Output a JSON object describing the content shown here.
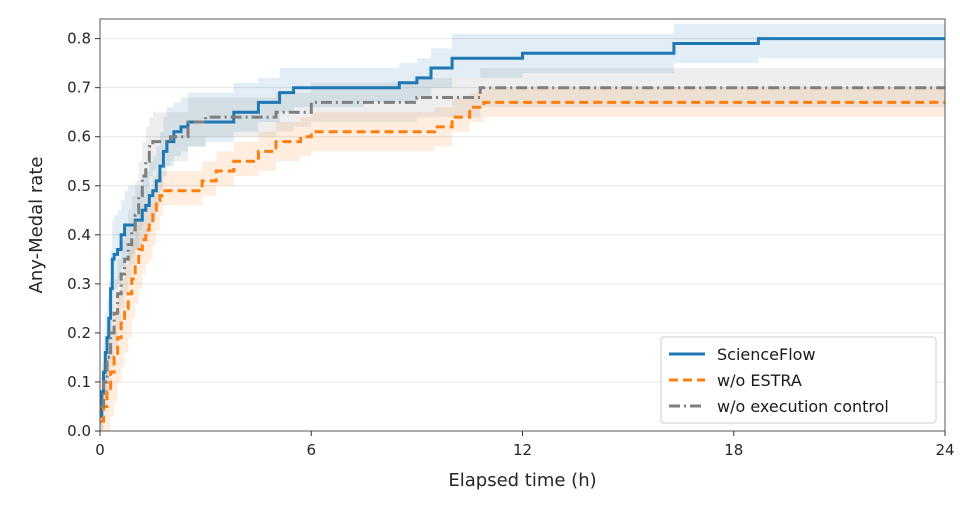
{
  "chart_data": {
    "type": "line",
    "step": true,
    "xlabel": "Elapsed time (h)",
    "ylabel": "Any-Medal rate",
    "xlim": [
      0,
      24
    ],
    "ylim": [
      0,
      0.84
    ],
    "x_ticks": [
      0,
      6,
      12,
      18,
      24
    ],
    "x_tick_labels": [
      "0",
      "6",
      "12",
      "18",
      "24"
    ],
    "y_ticks": [
      0.0,
      0.1,
      0.2,
      0.3,
      0.4,
      0.5,
      0.6,
      0.7,
      0.8
    ],
    "y_tick_labels": [
      "0.0",
      "0.1",
      "0.2",
      "0.3",
      "0.4",
      "0.5",
      "0.6",
      "0.7",
      "0.8"
    ],
    "grid": "horizontal",
    "legend_position": "lower-right",
    "series": [
      {
        "name": "ScienceFlow",
        "color": "#1f77b4",
        "dash": "solid",
        "x": [
          0,
          0.05,
          0.1,
          0.15,
          0.2,
          0.25,
          0.3,
          0.35,
          0.4,
          0.5,
          0.6,
          0.7,
          0.8,
          0.9,
          1.0,
          1.2,
          1.3,
          1.4,
          1.5,
          1.6,
          1.7,
          1.8,
          1.9,
          2.1,
          2.3,
          2.5,
          3.0,
          3.8,
          4.5,
          5.1,
          5.5,
          6.5,
          7.5,
          8.5,
          9.0,
          9.4,
          10.0,
          11.0,
          12.0,
          14.0,
          16.3,
          18.7,
          24.0
        ],
        "y": [
          0.03,
          0.08,
          0.12,
          0.16,
          0.19,
          0.23,
          0.29,
          0.35,
          0.36,
          0.37,
          0.4,
          0.42,
          0.42,
          0.42,
          0.43,
          0.45,
          0.46,
          0.48,
          0.49,
          0.51,
          0.54,
          0.57,
          0.59,
          0.61,
          0.62,
          0.63,
          0.63,
          0.65,
          0.67,
          0.69,
          0.7,
          0.7,
          0.7,
          0.71,
          0.72,
          0.74,
          0.76,
          0.76,
          0.77,
          0.77,
          0.79,
          0.8,
          0.8
        ],
        "band_lower": [
          0.0,
          0.02,
          0.05,
          0.08,
          0.12,
          0.15,
          0.21,
          0.27,
          0.29,
          0.3,
          0.33,
          0.35,
          0.35,
          0.36,
          0.37,
          0.39,
          0.4,
          0.42,
          0.43,
          0.46,
          0.49,
          0.52,
          0.54,
          0.56,
          0.57,
          0.58,
          0.59,
          0.61,
          0.63,
          0.65,
          0.66,
          0.66,
          0.67,
          0.67,
          0.68,
          0.7,
          0.72,
          0.72,
          0.73,
          0.73,
          0.75,
          0.76,
          0.76
        ],
        "band_upper": [
          0.07,
          0.14,
          0.19,
          0.24,
          0.27,
          0.31,
          0.37,
          0.43,
          0.44,
          0.45,
          0.47,
          0.49,
          0.5,
          0.5,
          0.5,
          0.52,
          0.53,
          0.55,
          0.56,
          0.58,
          0.61,
          0.64,
          0.66,
          0.67,
          0.68,
          0.69,
          0.69,
          0.71,
          0.72,
          0.74,
          0.74,
          0.74,
          0.74,
          0.75,
          0.76,
          0.78,
          0.81,
          0.81,
          0.81,
          0.81,
          0.83,
          0.83,
          0.83
        ]
      },
      {
        "name": "w/o ESTRA",
        "color": "#ff7f0e",
        "dash": "dashed",
        "x": [
          0,
          0.1,
          0.2,
          0.3,
          0.4,
          0.5,
          0.6,
          0.7,
          0.8,
          0.9,
          1.0,
          1.1,
          1.2,
          1.3,
          1.4,
          1.5,
          1.6,
          1.7,
          1.8,
          2.0,
          2.5,
          2.9,
          3.3,
          3.8,
          4.5,
          5.0,
          5.7,
          6.0,
          7.0,
          8.0,
          9.0,
          9.5,
          10.0,
          10.5,
          10.9,
          12.0,
          24.0
        ],
        "y": [
          0.02,
          0.05,
          0.08,
          0.12,
          0.15,
          0.19,
          0.22,
          0.25,
          0.28,
          0.31,
          0.34,
          0.37,
          0.39,
          0.41,
          0.42,
          0.45,
          0.47,
          0.48,
          0.49,
          0.49,
          0.49,
          0.51,
          0.53,
          0.55,
          0.57,
          0.59,
          0.6,
          0.61,
          0.61,
          0.61,
          0.61,
          0.62,
          0.64,
          0.66,
          0.67,
          0.67,
          0.67
        ],
        "band_lower": [
          0.0,
          0.0,
          0.0,
          0.03,
          0.06,
          0.1,
          0.13,
          0.16,
          0.19,
          0.23,
          0.26,
          0.29,
          0.32,
          0.34,
          0.35,
          0.38,
          0.41,
          0.44,
          0.46,
          0.46,
          0.46,
          0.48,
          0.5,
          0.52,
          0.53,
          0.55,
          0.56,
          0.57,
          0.57,
          0.57,
          0.57,
          0.58,
          0.61,
          0.63,
          0.64,
          0.64,
          0.64
        ],
        "band_upper": [
          0.08,
          0.12,
          0.16,
          0.21,
          0.24,
          0.28,
          0.31,
          0.34,
          0.37,
          0.39,
          0.42,
          0.45,
          0.46,
          0.48,
          0.49,
          0.52,
          0.53,
          0.53,
          0.53,
          0.53,
          0.53,
          0.55,
          0.57,
          0.59,
          0.61,
          0.63,
          0.64,
          0.65,
          0.65,
          0.65,
          0.65,
          0.66,
          0.68,
          0.69,
          0.7,
          0.7,
          0.7
        ]
      },
      {
        "name": "w/o execution control",
        "color": "#7f7f7f",
        "dash": "dashdot",
        "x": [
          0,
          0.1,
          0.2,
          0.3,
          0.4,
          0.5,
          0.6,
          0.7,
          0.8,
          0.9,
          1.0,
          1.1,
          1.2,
          1.3,
          1.4,
          1.5,
          1.6,
          2.0,
          2.5,
          3.0,
          4.0,
          5.0,
          5.5,
          6.0,
          7.0,
          8.0,
          9.0,
          9.8,
          10.2,
          10.8,
          12.0,
          24.0
        ],
        "y": [
          0.05,
          0.1,
          0.15,
          0.2,
          0.24,
          0.28,
          0.32,
          0.35,
          0.38,
          0.41,
          0.44,
          0.48,
          0.52,
          0.55,
          0.58,
          0.59,
          0.59,
          0.6,
          0.63,
          0.64,
          0.64,
          0.65,
          0.65,
          0.67,
          0.67,
          0.67,
          0.68,
          0.68,
          0.68,
          0.7,
          0.7,
          0.7
        ],
        "band_lower": [
          0.0,
          0.04,
          0.08,
          0.13,
          0.17,
          0.21,
          0.25,
          0.28,
          0.31,
          0.34,
          0.37,
          0.41,
          0.45,
          0.48,
          0.52,
          0.53,
          0.54,
          0.55,
          0.58,
          0.6,
          0.6,
          0.61,
          0.62,
          0.63,
          0.63,
          0.63,
          0.64,
          0.64,
          0.64,
          0.66,
          0.66,
          0.66
        ],
        "band_upper": [
          0.11,
          0.16,
          0.22,
          0.27,
          0.31,
          0.35,
          0.39,
          0.42,
          0.45,
          0.48,
          0.51,
          0.55,
          0.59,
          0.62,
          0.64,
          0.65,
          0.65,
          0.65,
          0.68,
          0.68,
          0.68,
          0.69,
          0.69,
          0.71,
          0.71,
          0.71,
          0.72,
          0.72,
          0.72,
          0.74,
          0.74,
          0.74
        ]
      }
    ]
  }
}
